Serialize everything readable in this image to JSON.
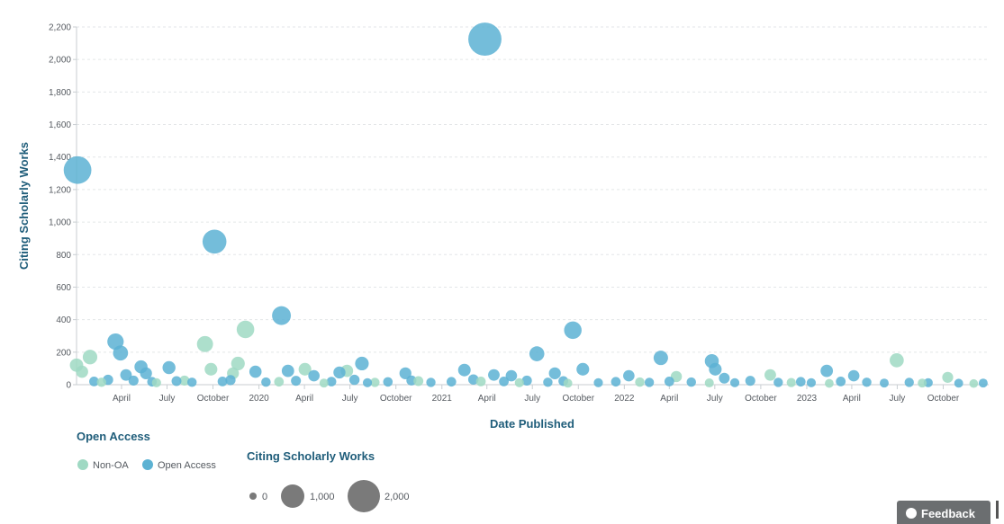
{
  "chart_data": {
    "type": "scatter",
    "xlabel": "Date Published",
    "ylabel": "Citing Scholarly Works",
    "x_range": [
      "2019-01-01",
      "2023-12-31"
    ],
    "ylim": [
      0,
      2200
    ],
    "y_ticks": [
      0,
      200,
      400,
      600,
      800,
      1000,
      1200,
      1400,
      1600,
      1800,
      2000,
      2200
    ],
    "y_tick_labels": [
      "0",
      "200",
      "400",
      "600",
      "800",
      "1,000",
      "1,200",
      "1,400",
      "1,600",
      "1,800",
      "2,000",
      "2,200"
    ],
    "x_ticks": [
      {
        "date": "2019-04-01",
        "label": "April"
      },
      {
        "date": "2019-07-01",
        "label": "July"
      },
      {
        "date": "2019-10-01",
        "label": "October"
      },
      {
        "date": "2020-01-01",
        "label": "2020"
      },
      {
        "date": "2020-04-01",
        "label": "April"
      },
      {
        "date": "2020-07-01",
        "label": "July"
      },
      {
        "date": "2020-10-01",
        "label": "October"
      },
      {
        "date": "2021-01-01",
        "label": "2021"
      },
      {
        "date": "2021-04-01",
        "label": "April"
      },
      {
        "date": "2021-07-01",
        "label": "July"
      },
      {
        "date": "2021-10-01",
        "label": "October"
      },
      {
        "date": "2022-01-01",
        "label": "2022"
      },
      {
        "date": "2022-04-01",
        "label": "April"
      },
      {
        "date": "2022-07-01",
        "label": "July"
      },
      {
        "date": "2022-10-01",
        "label": "October"
      },
      {
        "date": "2023-01-01",
        "label": "2023"
      },
      {
        "date": "2023-04-01",
        "label": "April"
      },
      {
        "date": "2023-07-01",
        "label": "July"
      },
      {
        "date": "2023-10-01",
        "label": "October"
      }
    ],
    "grid": true,
    "legend": "bottom-left",
    "series": [
      {
        "name": "Non-OA",
        "color": "#9fd9c3",
        "points": [
          {
            "x": "2019-01-01",
            "y": 120
          },
          {
            "x": "2019-01-12",
            "y": 80
          },
          {
            "x": "2019-01-28",
            "y": 170
          },
          {
            "x": "2019-09-15",
            "y": 250
          },
          {
            "x": "2019-09-27",
            "y": 95
          },
          {
            "x": "2019-11-20",
            "y": 130
          },
          {
            "x": "2019-12-05",
            "y": 340
          },
          {
            "x": "2019-11-10",
            "y": 70
          },
          {
            "x": "2020-04-02",
            "y": 95
          },
          {
            "x": "2020-06-25",
            "y": 85
          },
          {
            "x": "2021-03-20",
            "y": 20
          },
          {
            "x": "2022-04-15",
            "y": 50
          },
          {
            "x": "2022-10-20",
            "y": 60
          },
          {
            "x": "2023-06-30",
            "y": 150
          },
          {
            "x": "2023-10-10",
            "y": 45
          },
          {
            "x": "2019-02-20",
            "y": 15
          },
          {
            "x": "2019-06-10",
            "y": 12
          },
          {
            "x": "2019-08-05",
            "y": 25
          },
          {
            "x": "2020-02-10",
            "y": 18
          },
          {
            "x": "2020-05-10",
            "y": 10
          },
          {
            "x": "2020-08-20",
            "y": 14
          },
          {
            "x": "2020-11-15",
            "y": 22
          },
          {
            "x": "2021-06-05",
            "y": 12
          },
          {
            "x": "2021-09-10",
            "y": 9
          },
          {
            "x": "2022-02-01",
            "y": 16
          },
          {
            "x": "2022-06-20",
            "y": 11
          },
          {
            "x": "2022-12-01",
            "y": 13
          },
          {
            "x": "2023-02-15",
            "y": 8
          },
          {
            "x": "2023-08-20",
            "y": 10
          },
          {
            "x": "2023-12-01",
            "y": 7
          }
        ]
      },
      {
        "name": "Open Access",
        "color": "#5cb2d3",
        "points": [
          {
            "x": "2019-01-03",
            "y": 1320
          },
          {
            "x": "2019-10-04",
            "y": 880
          },
          {
            "x": "2020-02-15",
            "y": 425
          },
          {
            "x": "2021-03-28",
            "y": 2125
          },
          {
            "x": "2021-09-20",
            "y": 335
          },
          {
            "x": "2019-03-20",
            "y": 265
          },
          {
            "x": "2019-03-30",
            "y": 195
          },
          {
            "x": "2019-07-05",
            "y": 105
          },
          {
            "x": "2019-05-10",
            "y": 110
          },
          {
            "x": "2020-07-25",
            "y": 130
          },
          {
            "x": "2021-07-10",
            "y": 190
          },
          {
            "x": "2022-03-15",
            "y": 165
          },
          {
            "x": "2022-06-25",
            "y": 145
          },
          {
            "x": "2022-07-02",
            "y": 95
          },
          {
            "x": "2021-10-10",
            "y": 95
          },
          {
            "x": "2021-02-15",
            "y": 90
          },
          {
            "x": "2020-10-20",
            "y": 70
          },
          {
            "x": "2023-02-10",
            "y": 85
          },
          {
            "x": "2019-04-10",
            "y": 60
          },
          {
            "x": "2019-05-20",
            "y": 70
          },
          {
            "x": "2019-12-25",
            "y": 80
          },
          {
            "x": "2020-02-28",
            "y": 85
          },
          {
            "x": "2020-04-20",
            "y": 55
          },
          {
            "x": "2020-06-10",
            "y": 75
          },
          {
            "x": "2021-04-15",
            "y": 60
          },
          {
            "x": "2021-05-20",
            "y": 55
          },
          {
            "x": "2021-08-15",
            "y": 70
          },
          {
            "x": "2022-01-10",
            "y": 55
          },
          {
            "x": "2022-07-20",
            "y": 40
          },
          {
            "x": "2023-04-05",
            "y": 55
          },
          {
            "x": "2019-02-05",
            "y": 20
          },
          {
            "x": "2019-03-05",
            "y": 30
          },
          {
            "x": "2019-04-25",
            "y": 25
          },
          {
            "x": "2019-06-01",
            "y": 18
          },
          {
            "x": "2019-07-20",
            "y": 22
          },
          {
            "x": "2019-08-20",
            "y": 15
          },
          {
            "x": "2019-10-20",
            "y": 20
          },
          {
            "x": "2019-11-05",
            "y": 28
          },
          {
            "x": "2020-01-15",
            "y": 16
          },
          {
            "x": "2020-03-15",
            "y": 24
          },
          {
            "x": "2020-05-25",
            "y": 19
          },
          {
            "x": "2020-07-10",
            "y": 30
          },
          {
            "x": "2020-08-05",
            "y": 12
          },
          {
            "x": "2020-09-15",
            "y": 17
          },
          {
            "x": "2020-11-01",
            "y": 26
          },
          {
            "x": "2020-12-10",
            "y": 14
          },
          {
            "x": "2021-01-20",
            "y": 18
          },
          {
            "x": "2021-03-05",
            "y": 32
          },
          {
            "x": "2021-05-05",
            "y": 20
          },
          {
            "x": "2021-06-20",
            "y": 25
          },
          {
            "x": "2021-08-01",
            "y": 15
          },
          {
            "x": "2021-09-01",
            "y": 22
          },
          {
            "x": "2021-11-10",
            "y": 12
          },
          {
            "x": "2021-12-15",
            "y": 18
          },
          {
            "x": "2022-02-20",
            "y": 14
          },
          {
            "x": "2022-04-01",
            "y": 20
          },
          {
            "x": "2022-05-15",
            "y": 16
          },
          {
            "x": "2022-08-10",
            "y": 12
          },
          {
            "x": "2022-09-10",
            "y": 24
          },
          {
            "x": "2022-11-05",
            "y": 14
          },
          {
            "x": "2022-12-20",
            "y": 18
          },
          {
            "x": "2023-01-10",
            "y": 12
          },
          {
            "x": "2023-03-10",
            "y": 20
          },
          {
            "x": "2023-05-01",
            "y": 15
          },
          {
            "x": "2023-06-05",
            "y": 10
          },
          {
            "x": "2023-07-25",
            "y": 14
          },
          {
            "x": "2023-09-01",
            "y": 12
          },
          {
            "x": "2023-11-01",
            "y": 9
          },
          {
            "x": "2023-12-20",
            "y": 10
          }
        ]
      }
    ]
  },
  "legend_oa": {
    "title": "Open Access",
    "items": [
      {
        "label": "Non-OA",
        "color": "#9fd9c3"
      },
      {
        "label": "Open Access",
        "color": "#5cb2d3"
      }
    ]
  },
  "legend_size": {
    "title": "Citing Scholarly Works",
    "items": [
      {
        "value": 0,
        "label": "0"
      },
      {
        "value": 1000,
        "label": "1,000"
      },
      {
        "value": 2000,
        "label": "2,000"
      }
    ],
    "color": "#7a7a7a"
  },
  "feedback": {
    "label": "Feedback"
  }
}
